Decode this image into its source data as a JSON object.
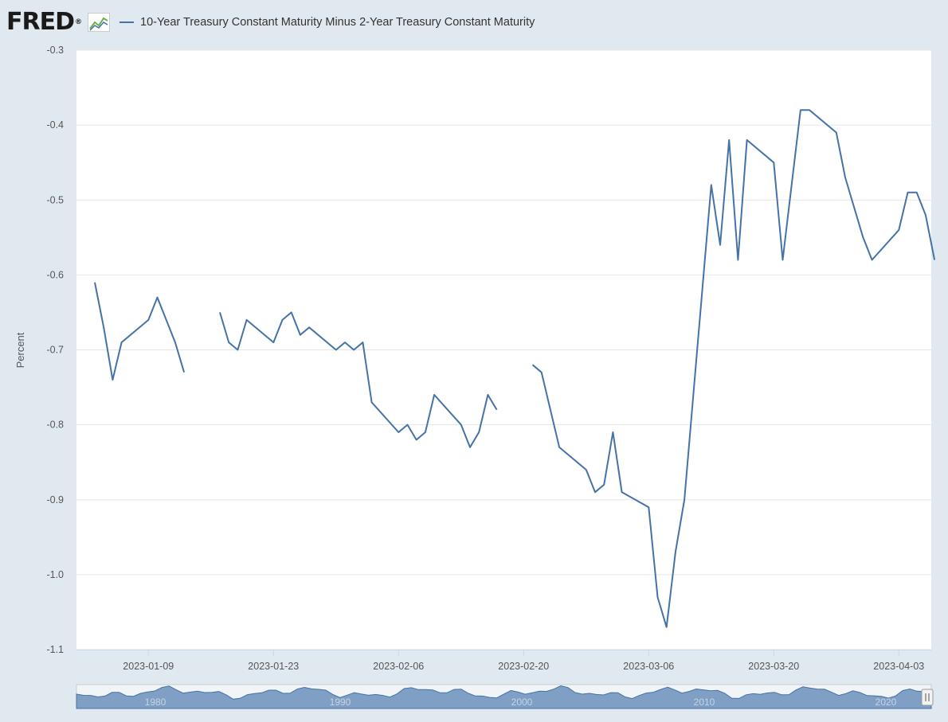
{
  "header": {
    "logo_text": "FRED",
    "logo_mark": "®"
  },
  "colors": {
    "series": "#4572a7",
    "background": "#e1e9f0",
    "plot": "#ffffff",
    "grid": "#e6e6e6",
    "navigator_fill": "#7f9fc4"
  },
  "icons": [
    "fred-graph-icon",
    "navigator-handle-icon"
  ],
  "chart_data": {
    "type": "line",
    "title": "",
    "xlabel": "",
    "ylabel": "Percent",
    "ylim": [
      -1.1,
      -0.3
    ],
    "yticks": [
      "-0.3",
      "-0.4",
      "-0.5",
      "-0.6",
      "-0.7",
      "-0.8",
      "-0.9",
      "-1.0",
      "-1.1"
    ],
    "xticks": [
      "2023-01-09",
      "2023-01-23",
      "2023-02-06",
      "2023-02-20",
      "2023-03-06",
      "2023-03-20",
      "2023-04-03"
    ],
    "grid": true,
    "legend": "top-left",
    "series": [
      {
        "name": "10-Year Treasury Constant Maturity Minus 2-Year Treasury Constant Maturity",
        "points": [
          [
            "2023-01-03",
            -0.61
          ],
          [
            "2023-01-04",
            -0.67
          ],
          [
            "2023-01-05",
            -0.74
          ],
          [
            "2023-01-06",
            -0.69
          ],
          [
            "2023-01-09",
            -0.66
          ],
          [
            "2023-01-10",
            -0.63
          ],
          [
            "2023-01-11",
            -0.66
          ],
          [
            "2023-01-12",
            -0.69
          ],
          [
            "2023-01-13",
            -0.73
          ],
          [
            "2023-01-16",
            null
          ],
          [
            "2023-01-17",
            -0.65
          ],
          [
            "2023-01-18",
            -0.69
          ],
          [
            "2023-01-19",
            -0.7
          ],
          [
            "2023-01-20",
            -0.66
          ],
          [
            "2023-01-23",
            -0.69
          ],
          [
            "2023-01-24",
            -0.66
          ],
          [
            "2023-01-25",
            -0.65
          ],
          [
            "2023-01-26",
            -0.68
          ],
          [
            "2023-01-27",
            -0.67
          ],
          [
            "2023-01-30",
            -0.7
          ],
          [
            "2023-01-31",
            -0.69
          ],
          [
            "2023-02-01",
            -0.7
          ],
          [
            "2023-02-02",
            -0.69
          ],
          [
            "2023-02-03",
            -0.77
          ],
          [
            "2023-02-06",
            -0.81
          ],
          [
            "2023-02-07",
            -0.8
          ],
          [
            "2023-02-08",
            -0.82
          ],
          [
            "2023-02-09",
            -0.81
          ],
          [
            "2023-02-10",
            -0.76
          ],
          [
            "2023-02-13",
            -0.8
          ],
          [
            "2023-02-14",
            -0.83
          ],
          [
            "2023-02-15",
            -0.81
          ],
          [
            "2023-02-16",
            -0.76
          ],
          [
            "2023-02-17",
            -0.78
          ],
          [
            "2023-02-20",
            null
          ],
          [
            "2023-02-21",
            -0.72
          ],
          [
            "2023-02-22",
            -0.73
          ],
          [
            "2023-02-23",
            -0.78
          ],
          [
            "2023-02-24",
            -0.83
          ],
          [
            "2023-02-27",
            -0.86
          ],
          [
            "2023-02-28",
            -0.89
          ],
          [
            "2023-03-01",
            -0.88
          ],
          [
            "2023-03-02",
            -0.81
          ],
          [
            "2023-03-03",
            -0.89
          ],
          [
            "2023-03-06",
            -0.91
          ],
          [
            "2023-03-07",
            -1.03
          ],
          [
            "2023-03-08",
            -1.07
          ],
          [
            "2023-03-09",
            -0.97
          ],
          [
            "2023-03-10",
            -0.9
          ],
          [
            "2023-03-13",
            -0.48
          ],
          [
            "2023-03-14",
            -0.56
          ],
          [
            "2023-03-15",
            -0.42
          ],
          [
            "2023-03-16",
            -0.58
          ],
          [
            "2023-03-17",
            -0.42
          ],
          [
            "2023-03-20",
            -0.45
          ],
          [
            "2023-03-21",
            -0.58
          ],
          [
            "2023-03-22",
            -0.48
          ],
          [
            "2023-03-23",
            -0.38
          ],
          [
            "2023-03-24",
            -0.38
          ],
          [
            "2023-03-27",
            -0.41
          ],
          [
            "2023-03-28",
            -0.47
          ],
          [
            "2023-03-29",
            -0.51
          ],
          [
            "2023-03-30",
            -0.55
          ],
          [
            "2023-03-31",
            -0.58
          ],
          [
            "2023-04-03",
            -0.54
          ],
          [
            "2023-04-04",
            -0.49
          ],
          [
            "2023-04-05",
            -0.49
          ],
          [
            "2023-04-06",
            -0.52
          ],
          [
            "2023-04-07",
            -0.58
          ]
        ]
      }
    ],
    "navigator": {
      "labels": [
        "1980",
        "1990",
        "2000",
        "2010",
        "2020"
      ]
    }
  }
}
